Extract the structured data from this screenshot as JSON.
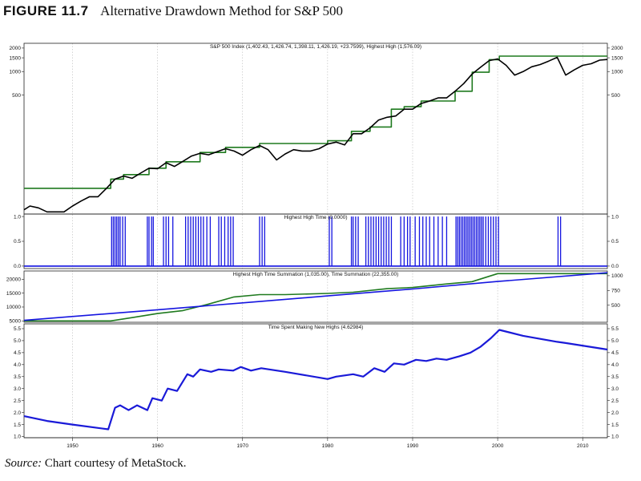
{
  "figure": {
    "label": "FIGURE 11.7",
    "title": "Alternative Drawdown Method for S&P 500"
  },
  "source": {
    "prefix": "Source:",
    "text": "Chart courtesy of MetaStock."
  },
  "colors": {
    "price": "#000000",
    "highest_high": "#1f7a1f",
    "flag": "#1515e0",
    "summation_hh": "#1f7a1f",
    "summation_time": "#1515e0",
    "ratio": "#1a1ad8",
    "grid": "#b8b8b8"
  },
  "chart_data": [
    {
      "type": "line",
      "title": "S&P 500 Index  (1,402.43, 1,426.74, 1,398.11, 1,426.19, +23.7599), Highest High (1,576.09)",
      "y_scale": "log",
      "ylim": [
        15,
        2300
      ],
      "xlim": [
        1944.3,
        2012.9
      ],
      "x_ticks": [
        1950,
        1960,
        1970,
        1980,
        1990,
        2000,
        2010
      ],
      "x_tick_labels": [
        "1950",
        "1960",
        "1970",
        "1980",
        "1990",
        "2000",
        "2010"
      ],
      "y_ticks": [
        500,
        1000,
        1500,
        2000
      ],
      "y_tick_labels": [
        "500",
        "1000",
        "1500",
        "2000"
      ],
      "grid": true,
      "series": [
        {
          "name": "S&P 500 Index",
          "x": [
            1944.3,
            1945,
            1946,
            1947,
            1948,
            1949,
            1950,
            1951,
            1952,
            1953,
            1954,
            1955,
            1956,
            1957,
            1958,
            1959,
            1960,
            1961,
            1962,
            1963,
            1964,
            1965,
            1966,
            1967,
            1968,
            1969,
            1970,
            1971,
            1972,
            1973,
            1974,
            1975,
            1976,
            1977,
            1978,
            1979,
            1980,
            1981,
            1982,
            1983,
            1984,
            1985,
            1986,
            1987,
            1988,
            1989,
            1990,
            1991,
            1992,
            1993,
            1994,
            1995,
            1996,
            1997,
            1998,
            1999,
            2000,
            2001,
            2002,
            2003,
            2004,
            2005,
            2006,
            2007,
            2008,
            2009,
            2010,
            2011,
            2012,
            2012.9
          ],
          "values": [
            17,
            19,
            18,
            16,
            16,
            16,
            19,
            22,
            25,
            25,
            32,
            42,
            46,
            43,
            50,
            58,
            57,
            68,
            61,
            71,
            83,
            90,
            86,
            94,
            103,
            96,
            85,
            100,
            113,
            100,
            74,
            88,
            100,
            96,
            96,
            103,
            118,
            125,
            115,
            160,
            160,
            190,
            240,
            260,
            270,
            330,
            330,
            390,
            420,
            460,
            460,
            560,
            700,
            930,
            1140,
            1380,
            1450,
            1200,
            900,
            1000,
            1150,
            1230,
            1360,
            1520,
            900,
            1050,
            1200,
            1260,
            1400,
            1426
          ]
        },
        {
          "name": "Highest High",
          "x": [
            1944.3,
            1954.5,
            1954.5,
            1956,
            1956,
            1959,
            1959,
            1961,
            1961,
            1965,
            1965,
            1968,
            1968,
            1972,
            1972,
            1980,
            1980,
            1982.8,
            1982.8,
            1985,
            1985,
            1987.5,
            1987.5,
            1989,
            1989,
            1991,
            1991,
            1995,
            1995,
            1997,
            1997,
            1999,
            1999,
            2000.2,
            2000.2,
            2007.8,
            2007.8,
            2012.9
          ],
          "values": [
            32,
            32,
            42,
            42,
            48,
            48,
            58,
            58,
            70,
            70,
            92,
            92,
            107,
            107,
            120,
            120,
            130,
            130,
            172,
            172,
            195,
            195,
            330,
            330,
            355,
            355,
            420,
            420,
            560,
            560,
            980,
            980,
            1420,
            1420,
            1576,
            1576,
            1576,
            1576
          ]
        }
      ]
    },
    {
      "type": "bar",
      "title": "Highest High Time (0.0000)",
      "ylim": [
        -0.05,
        1.05
      ],
      "xlim": [
        1944.3,
        2012.9
      ],
      "y_ticks": [
        0.0,
        0.5,
        1.0
      ],
      "y_tick_labels": [
        "0.0",
        "0.5",
        "1.0"
      ],
      "series": [
        {
          "name": "Highest High Time",
          "x": [
            1954.6,
            1954.8,
            1955.0,
            1955.2,
            1955.4,
            1955.6,
            1955.9,
            1956.2,
            1958.8,
            1959.0,
            1959.3,
            1959.5,
            1960.7,
            1961.0,
            1961.3,
            1961.8,
            1963.3,
            1963.6,
            1963.9,
            1964.2,
            1964.5,
            1964.8,
            1965.1,
            1965.4,
            1965.8,
            1966.2,
            1967.2,
            1967.5,
            1967.9,
            1968.3,
            1968.6,
            1968.9,
            1972.0,
            1972.3,
            1972.6,
            1980.2,
            1980.5,
            1982.8,
            1983.0,
            1983.3,
            1983.6,
            1984.5,
            1984.8,
            1985.1,
            1985.4,
            1985.7,
            1986.0,
            1986.3,
            1986.6,
            1986.9,
            1987.2,
            1987.5,
            1988.6,
            1989.0,
            1989.4,
            1989.7,
            1990.3,
            1990.8,
            1991.2,
            1991.6,
            1992.0,
            1992.5,
            1993.0,
            1993.5,
            1994.0,
            1995.1,
            1995.3,
            1995.5,
            1995.7,
            1995.9,
            1996.1,
            1996.3,
            1996.5,
            1996.7,
            1996.9,
            1997.1,
            1997.3,
            1997.5,
            1997.7,
            1997.9,
            1998.1,
            1998.3,
            1998.6,
            1998.9,
            1999.2,
            1999.5,
            1999.8,
            2000.1,
            2007.1,
            2007.4
          ],
          "values": [
            1,
            1,
            1,
            1,
            1,
            1,
            1,
            1,
            1,
            1,
            1,
            1,
            1,
            1,
            1,
            1,
            1,
            1,
            1,
            1,
            1,
            1,
            1,
            1,
            1,
            1,
            1,
            1,
            1,
            1,
            1,
            1,
            1,
            1,
            1,
            1,
            1,
            1,
            1,
            1,
            1,
            1,
            1,
            1,
            1,
            1,
            1,
            1,
            1,
            1,
            1,
            1,
            1,
            1,
            1,
            1,
            1,
            1,
            1,
            1,
            1,
            1,
            1,
            1,
            1,
            1,
            1,
            1,
            1,
            1,
            1,
            1,
            1,
            1,
            1,
            1,
            1,
            1,
            1,
            1,
            1,
            1,
            1,
            1,
            1,
            1,
            1,
            1,
            1,
            1
          ]
        }
      ]
    },
    {
      "type": "line",
      "title": "Highest High Time Summation (1,035.00), Time Summation (22,355.00)",
      "xlim": [
        1944.3,
        2012.9
      ],
      "ylim": [
        4500,
        23000
      ],
      "y_ticks": [
        5000,
        10000,
        15000,
        20000
      ],
      "y_tick_labels": [
        "5000",
        "10000",
        "15000",
        "20000"
      ],
      "y2lim": [
        212,
        1080
      ],
      "y2_ticks": [
        500,
        750,
        1000
      ],
      "y2_tick_labels": [
        "500",
        "750",
        "1000"
      ],
      "series": [
        {
          "name": "Highest High Time Summation",
          "axis": "right",
          "x": [
            1944.3,
            1954.5,
            1957,
            1960,
            1963,
            1966,
            1969,
            1972,
            1975,
            1980,
            1983,
            1987,
            1990,
            1994,
            1997,
            2000,
            2007,
            2012.9
          ],
          "values": [
            235,
            235,
            290,
            360,
            410,
            520,
            640,
            680,
            680,
            700,
            720,
            780,
            800,
            860,
            900,
            1035,
            1035,
            1035
          ]
        },
        {
          "name": "Time Summation",
          "axis": "left",
          "x": [
            1944.3,
            1960,
            1970,
            1980,
            1990,
            2000,
            2012.9
          ],
          "values": [
            5200,
            9000,
            11500,
            14000,
            16500,
            19200,
            22355
          ]
        }
      ]
    },
    {
      "type": "line",
      "title": "Time Spent Making New Highs (4.62984)",
      "xlim": [
        1944.3,
        2012.9
      ],
      "ylim": [
        0.95,
        5.7
      ],
      "y_ticks": [
        1.0,
        1.5,
        2.0,
        2.5,
        3.0,
        3.5,
        4.0,
        4.5,
        5.0,
        5.5
      ],
      "y_tick_labels": [
        "1.0",
        "1.5",
        "2.0",
        "2.5",
        "3.0",
        "3.5",
        "4.0",
        "4.5",
        "5.0",
        "5.5"
      ],
      "series": [
        {
          "name": "Time Spent Making New Highs",
          "x": [
            1944.3,
            1947,
            1950,
            1954.2,
            1955.0,
            1955.6,
            1956.6,
            1957.6,
            1958.8,
            1959.4,
            1960.5,
            1961.2,
            1962.3,
            1963.5,
            1964.2,
            1965.0,
            1966.3,
            1967.2,
            1968.9,
            1969.8,
            1971,
            1972.2,
            1975,
            1980,
            1981,
            1983.0,
            1984.2,
            1985.5,
            1986.7,
            1987.8,
            1989.0,
            1990.4,
            1991.6,
            1992.8,
            1994.0,
            1995.5,
            1996.8,
            1998.0,
            1999.2,
            2000.2,
            2003,
            2007,
            2008,
            2012.9
          ],
          "values": [
            1.85,
            1.65,
            1.5,
            1.3,
            2.2,
            2.3,
            2.1,
            2.3,
            2.1,
            2.6,
            2.5,
            3.0,
            2.9,
            3.6,
            3.5,
            3.8,
            3.7,
            3.8,
            3.75,
            3.9,
            3.75,
            3.85,
            3.7,
            3.4,
            3.5,
            3.6,
            3.5,
            3.85,
            3.7,
            4.05,
            4.0,
            4.2,
            4.15,
            4.25,
            4.2,
            4.35,
            4.5,
            4.75,
            5.1,
            5.45,
            5.2,
            4.95,
            4.9,
            4.63
          ]
        }
      ]
    }
  ]
}
